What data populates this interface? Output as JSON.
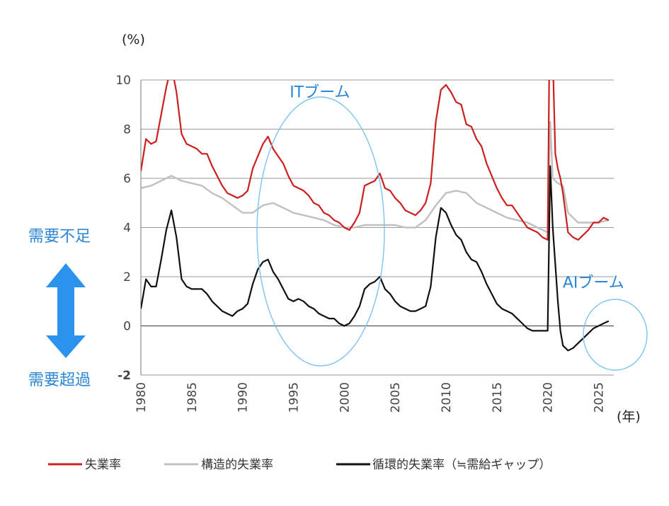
{
  "chart_data": {
    "type": "line",
    "y_unit_label": "(%)",
    "x_unit_label": "(年)",
    "xlim": [
      1980,
      2026.5
    ],
    "ylim": [
      -2,
      10
    ],
    "y_ticks": [
      -2,
      0,
      2,
      4,
      6,
      8,
      10
    ],
    "x_ticks": [
      1980,
      1985,
      1990,
      1995,
      2000,
      2005,
      2010,
      2015,
      2020,
      2025
    ],
    "grid": "horizontal",
    "legend_position": "bottom",
    "colors": {
      "unemployment": "#cc1f1f",
      "structural": "#c0c0c0",
      "cyclical": "#111111",
      "annotation": "#2b86d4",
      "neg_tick": "#e03030"
    },
    "side_labels": {
      "top": "需要不足",
      "bottom": "需要超過"
    },
    "annotations": [
      {
        "text": "ITブーム",
        "x": 1997.6,
        "y": 9.3
      },
      {
        "text": "AIブーム",
        "x": 2024.5,
        "y": 1.55
      }
    ],
    "series": [
      {
        "key": "unemployment",
        "name": "失業率",
        "points": [
          [
            1980.0,
            6.3
          ],
          [
            1980.5,
            7.6
          ],
          [
            1981.0,
            7.4
          ],
          [
            1981.5,
            7.5
          ],
          [
            1982.0,
            8.6
          ],
          [
            1982.5,
            9.7
          ],
          [
            1983.0,
            10.6
          ],
          [
            1983.5,
            9.5
          ],
          [
            1984.0,
            7.8
          ],
          [
            1984.5,
            7.4
          ],
          [
            1985.0,
            7.3
          ],
          [
            1985.5,
            7.2
          ],
          [
            1986.0,
            7.0
          ],
          [
            1986.5,
            7.0
          ],
          [
            1987.0,
            6.5
          ],
          [
            1987.5,
            6.1
          ],
          [
            1988.0,
            5.7
          ],
          [
            1988.5,
            5.4
          ],
          [
            1989.0,
            5.3
          ],
          [
            1989.5,
            5.2
          ],
          [
            1990.0,
            5.3
          ],
          [
            1990.5,
            5.5
          ],
          [
            1991.0,
            6.4
          ],
          [
            1991.5,
            6.9
          ],
          [
            1992.0,
            7.4
          ],
          [
            1992.5,
            7.7
          ],
          [
            1993.0,
            7.2
          ],
          [
            1993.5,
            6.9
          ],
          [
            1994.0,
            6.6
          ],
          [
            1994.5,
            6.1
          ],
          [
            1995.0,
            5.7
          ],
          [
            1995.5,
            5.6
          ],
          [
            1996.0,
            5.5
          ],
          [
            1996.5,
            5.3
          ],
          [
            1997.0,
            5.0
          ],
          [
            1997.5,
            4.9
          ],
          [
            1998.0,
            4.6
          ],
          [
            1998.5,
            4.5
          ],
          [
            1999.0,
            4.3
          ],
          [
            1999.5,
            4.2
          ],
          [
            2000.0,
            4.0
          ],
          [
            2000.5,
            3.9
          ],
          [
            2001.0,
            4.2
          ],
          [
            2001.5,
            4.6
          ],
          [
            2002.0,
            5.7
          ],
          [
            2002.5,
            5.8
          ],
          [
            2003.0,
            5.9
          ],
          [
            2003.5,
            6.2
          ],
          [
            2004.0,
            5.6
          ],
          [
            2004.5,
            5.5
          ],
          [
            2005.0,
            5.2
          ],
          [
            2005.5,
            5.0
          ],
          [
            2006.0,
            4.7
          ],
          [
            2006.5,
            4.6
          ],
          [
            2007.0,
            4.5
          ],
          [
            2007.5,
            4.7
          ],
          [
            2008.0,
            5.0
          ],
          [
            2008.5,
            5.8
          ],
          [
            2009.0,
            8.3
          ],
          [
            2009.5,
            9.6
          ],
          [
            2010.0,
            9.8
          ],
          [
            2010.5,
            9.5
          ],
          [
            2011.0,
            9.1
          ],
          [
            2011.5,
            9.0
          ],
          [
            2012.0,
            8.2
          ],
          [
            2012.5,
            8.1
          ],
          [
            2013.0,
            7.6
          ],
          [
            2013.5,
            7.3
          ],
          [
            2014.0,
            6.6
          ],
          [
            2014.5,
            6.1
          ],
          [
            2015.0,
            5.6
          ],
          [
            2015.5,
            5.2
          ],
          [
            2016.0,
            4.9
          ],
          [
            2016.5,
            4.9
          ],
          [
            2017.0,
            4.6
          ],
          [
            2017.5,
            4.3
          ],
          [
            2018.0,
            4.0
          ],
          [
            2018.5,
            3.9
          ],
          [
            2019.0,
            3.8
          ],
          [
            2019.5,
            3.6
          ],
          [
            2020.0,
            3.5
          ],
          [
            2020.25,
            14.7
          ],
          [
            2020.5,
            11.0
          ],
          [
            2020.75,
            7.0
          ],
          [
            2021.0,
            6.4
          ],
          [
            2021.25,
            6.0
          ],
          [
            2021.5,
            5.4
          ],
          [
            2022.0,
            3.8
          ],
          [
            2022.5,
            3.6
          ],
          [
            2023.0,
            3.5
          ],
          [
            2023.5,
            3.7
          ],
          [
            2024.0,
            3.9
          ],
          [
            2024.5,
            4.2
          ],
          [
            2025.0,
            4.2
          ],
          [
            2025.5,
            4.4
          ],
          [
            2026.0,
            4.3
          ]
        ]
      },
      {
        "key": "structural",
        "name": "構造的失業率",
        "points": [
          [
            1980.0,
            5.6
          ],
          [
            1981.0,
            5.7
          ],
          [
            1982.0,
            5.9
          ],
          [
            1983.0,
            6.1
          ],
          [
            1984.0,
            5.9
          ],
          [
            1985.0,
            5.8
          ],
          [
            1986.0,
            5.7
          ],
          [
            1987.0,
            5.4
          ],
          [
            1988.0,
            5.2
          ],
          [
            1989.0,
            4.9
          ],
          [
            1990.0,
            4.6
          ],
          [
            1991.0,
            4.6
          ],
          [
            1992.0,
            4.9
          ],
          [
            1993.0,
            5.0
          ],
          [
            1994.0,
            4.8
          ],
          [
            1995.0,
            4.6
          ],
          [
            1996.0,
            4.5
          ],
          [
            1997.0,
            4.4
          ],
          [
            1998.0,
            4.3
          ],
          [
            1999.0,
            4.1
          ],
          [
            2000.0,
            4.0
          ],
          [
            2001.0,
            4.0
          ],
          [
            2002.0,
            4.1
          ],
          [
            2003.0,
            4.1
          ],
          [
            2004.0,
            4.1
          ],
          [
            2005.0,
            4.1
          ],
          [
            2006.0,
            4.0
          ],
          [
            2007.0,
            4.0
          ],
          [
            2008.0,
            4.3
          ],
          [
            2009.0,
            4.9
          ],
          [
            2010.0,
            5.4
          ],
          [
            2011.0,
            5.5
          ],
          [
            2012.0,
            5.4
          ],
          [
            2013.0,
            5.0
          ],
          [
            2014.0,
            4.8
          ],
          [
            2015.0,
            4.6
          ],
          [
            2016.0,
            4.4
          ],
          [
            2017.0,
            4.3
          ],
          [
            2018.0,
            4.2
          ],
          [
            2019.0,
            4.0
          ],
          [
            2020.0,
            3.8
          ],
          [
            2020.25,
            8.3
          ],
          [
            2020.5,
            6.0
          ],
          [
            2021.0,
            5.8
          ],
          [
            2021.5,
            5.7
          ],
          [
            2022.0,
            4.6
          ],
          [
            2023.0,
            4.2
          ],
          [
            2024.0,
            4.2
          ],
          [
            2025.0,
            4.2
          ],
          [
            2026.0,
            4.3
          ]
        ]
      },
      {
        "key": "cyclical",
        "name": "循環的失業率（≒需給ギャップ）",
        "points": [
          [
            1980.0,
            0.7
          ],
          [
            1980.5,
            1.9
          ],
          [
            1981.0,
            1.6
          ],
          [
            1981.5,
            1.6
          ],
          [
            1982.0,
            2.7
          ],
          [
            1982.5,
            3.9
          ],
          [
            1983.0,
            4.7
          ],
          [
            1983.5,
            3.6
          ],
          [
            1984.0,
            1.9
          ],
          [
            1984.5,
            1.6
          ],
          [
            1985.0,
            1.5
          ],
          [
            1985.5,
            1.5
          ],
          [
            1986.0,
            1.5
          ],
          [
            1986.5,
            1.3
          ],
          [
            1987.0,
            1.0
          ],
          [
            1987.5,
            0.8
          ],
          [
            1988.0,
            0.6
          ],
          [
            1988.5,
            0.5
          ],
          [
            1989.0,
            0.4
          ],
          [
            1989.5,
            0.6
          ],
          [
            1990.0,
            0.7
          ],
          [
            1990.5,
            0.9
          ],
          [
            1991.0,
            1.7
          ],
          [
            1991.5,
            2.3
          ],
          [
            1992.0,
            2.6
          ],
          [
            1992.5,
            2.7
          ],
          [
            1993.0,
            2.2
          ],
          [
            1993.5,
            1.9
          ],
          [
            1994.0,
            1.5
          ],
          [
            1994.5,
            1.1
          ],
          [
            1995.0,
            1.0
          ],
          [
            1995.5,
            1.1
          ],
          [
            1996.0,
            1.0
          ],
          [
            1996.5,
            0.8
          ],
          [
            1997.0,
            0.7
          ],
          [
            1997.5,
            0.5
          ],
          [
            1998.0,
            0.4
          ],
          [
            1998.5,
            0.3
          ],
          [
            1999.0,
            0.3
          ],
          [
            1999.5,
            0.1
          ],
          [
            2000.0,
            0.0
          ],
          [
            2000.5,
            0.1
          ],
          [
            2001.0,
            0.4
          ],
          [
            2001.5,
            0.8
          ],
          [
            2002.0,
            1.5
          ],
          [
            2002.5,
            1.7
          ],
          [
            2003.0,
            1.8
          ],
          [
            2003.5,
            2.0
          ],
          [
            2004.0,
            1.5
          ],
          [
            2004.5,
            1.3
          ],
          [
            2005.0,
            1.0
          ],
          [
            2005.5,
            0.8
          ],
          [
            2006.0,
            0.7
          ],
          [
            2006.5,
            0.6
          ],
          [
            2007.0,
            0.6
          ],
          [
            2007.5,
            0.7
          ],
          [
            2008.0,
            0.8
          ],
          [
            2008.5,
            1.6
          ],
          [
            2009.0,
            3.6
          ],
          [
            2009.5,
            4.8
          ],
          [
            2010.0,
            4.6
          ],
          [
            2010.5,
            4.1
          ],
          [
            2011.0,
            3.7
          ],
          [
            2011.5,
            3.5
          ],
          [
            2012.0,
            3.0
          ],
          [
            2012.5,
            2.7
          ],
          [
            2013.0,
            2.6
          ],
          [
            2013.5,
            2.2
          ],
          [
            2014.0,
            1.7
          ],
          [
            2014.5,
            1.3
          ],
          [
            2015.0,
            0.9
          ],
          [
            2015.5,
            0.7
          ],
          [
            2016.0,
            0.6
          ],
          [
            2016.5,
            0.5
          ],
          [
            2017.0,
            0.3
          ],
          [
            2017.5,
            0.1
          ],
          [
            2018.0,
            -0.1
          ],
          [
            2018.5,
            -0.2
          ],
          [
            2019.0,
            -0.2
          ],
          [
            2019.5,
            -0.2
          ],
          [
            2020.0,
            -0.2
          ],
          [
            2020.25,
            6.5
          ],
          [
            2020.5,
            4.0
          ],
          [
            2020.75,
            2.5
          ],
          [
            2021.0,
            1.0
          ],
          [
            2021.25,
            -0.2
          ],
          [
            2021.5,
            -0.8
          ],
          [
            2022.0,
            -1.0
          ],
          [
            2022.5,
            -0.9
          ],
          [
            2023.0,
            -0.7
          ],
          [
            2023.5,
            -0.5
          ],
          [
            2024.0,
            -0.3
          ],
          [
            2024.5,
            -0.1
          ],
          [
            2025.0,
            0.0
          ],
          [
            2025.5,
            0.1
          ],
          [
            2026.0,
            0.2
          ]
        ]
      }
    ]
  }
}
